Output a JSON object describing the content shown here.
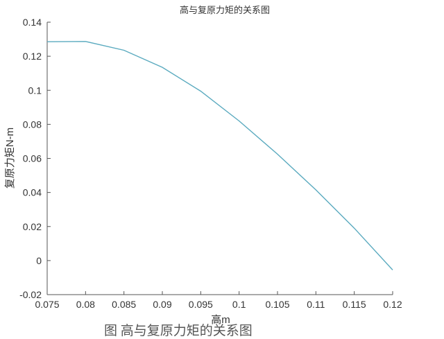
{
  "chart_data": {
    "type": "line",
    "title": "高与复原力矩的关系图",
    "xlabel": "高m",
    "ylabel": "复原力矩N-m",
    "xlim": [
      0.075,
      0.12
    ],
    "ylim": [
      -0.02,
      0.14
    ],
    "x_ticks": [
      "0.075",
      "0.08",
      "0.085",
      "0.09",
      "0.095",
      "0.1",
      "0.105",
      "0.11",
      "0.115",
      "0.12"
    ],
    "y_ticks": [
      "-0.02",
      "0",
      "0.02",
      "0.04",
      "0.06",
      "0.08",
      "0.1",
      "0.12",
      "0.14"
    ],
    "grid": false,
    "series": [
      {
        "color": "#5aaabf",
        "x": [
          0.075,
          0.08,
          0.085,
          0.09,
          0.095,
          0.1,
          0.105,
          0.11,
          0.115,
          0.12
        ],
        "y": [
          0.1285,
          0.1287,
          0.1235,
          0.1135,
          0.0995,
          0.082,
          0.0625,
          0.0415,
          0.019,
          -0.0055
        ]
      }
    ]
  },
  "caption": "图 高与复原力矩的关系图"
}
